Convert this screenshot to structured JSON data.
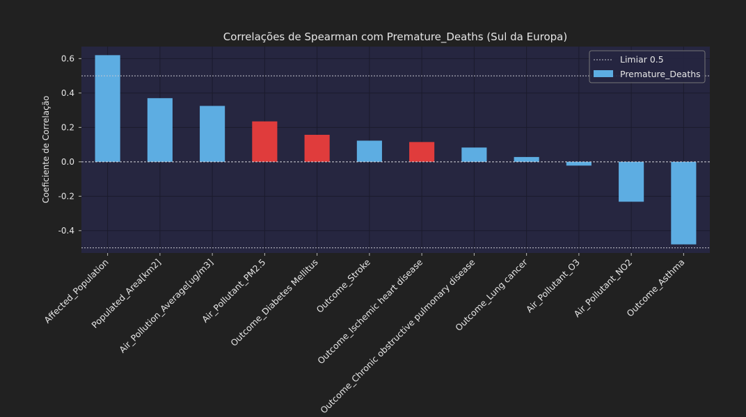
{
  "chart_data": {
    "type": "bar",
    "title": "Correlações de Spearman com Premature_Deaths (Sul da Europa)",
    "ylabel": "Coeficiente de Correlação",
    "xlabel": "",
    "ylim": [
      -0.53,
      0.67
    ],
    "yticks": [
      -0.4,
      -0.2,
      0.0,
      0.2,
      0.4,
      0.6
    ],
    "grid": true,
    "legend_position": "top-right",
    "series": [
      {
        "name": "Premature_Deaths",
        "values": [
          0.62,
          0.37,
          0.325,
          0.235,
          0.157,
          0.123,
          0.115,
          0.083,
          0.028,
          -0.022,
          -0.232,
          -0.48
        ]
      }
    ],
    "categories": [
      "Affected_Population",
      "Populated_Area[km2]",
      "Air_Pollution_Average[ug/m3]",
      "Air_Pollutant_PM2.5",
      "Outcome_Diabetes Mellitus",
      "Outcome_Stroke",
      "Outcome_Ischemic heart disease",
      "Outcome_Chronic obstructive pulmonary disease",
      "Outcome_Lung cancer",
      "Air_Pollutant_O3",
      "Air_Pollutant_NO2",
      "Outcome_Asthma"
    ],
    "bar_colors": [
      "#5dade2",
      "#5dade2",
      "#5dade2",
      "#e03c3c",
      "#e03c3c",
      "#5dade2",
      "#e03c3c",
      "#5dade2",
      "#5dade2",
      "#5dade2",
      "#5dade2",
      "#5dade2"
    ],
    "threshold": {
      "label": "Limiar 0.5",
      "values": [
        0.5,
        -0.5
      ]
    },
    "colors": {
      "figure_bg": "#212121",
      "axes_bg": "#262640",
      "bar_default": "#5dade2",
      "bar_highlight": "#e03c3c",
      "text": "#e6e6e6"
    }
  }
}
